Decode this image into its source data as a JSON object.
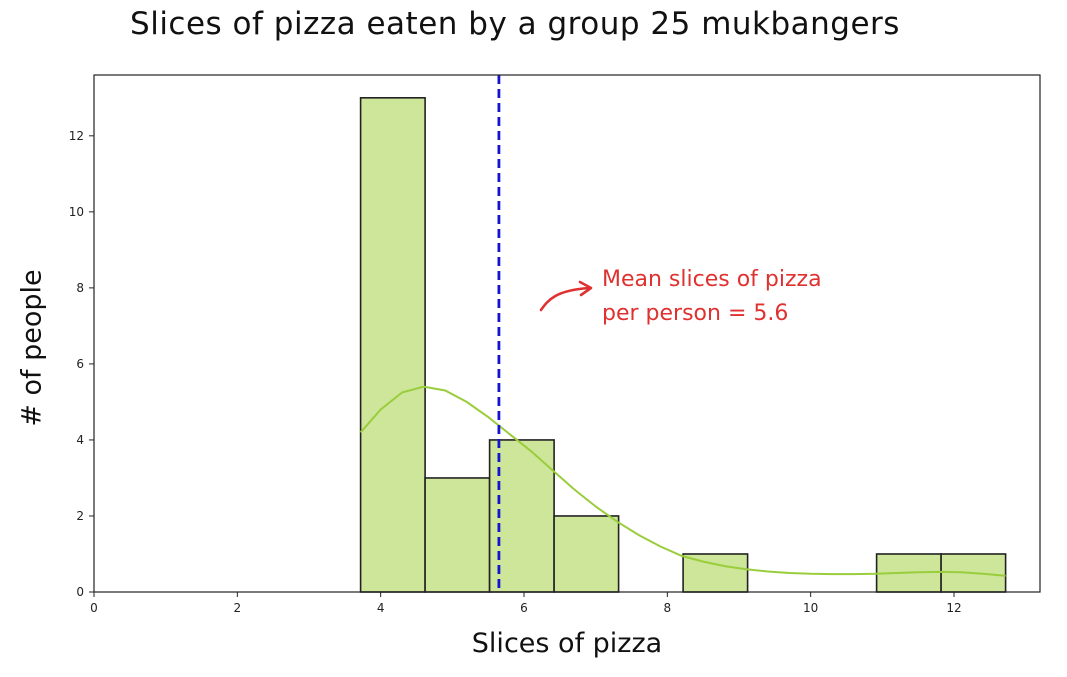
{
  "chart_data": {
    "type": "bar",
    "title": "Slices of pizza eaten by a group 25 mukbangers",
    "xlabel": "Slices of pizza",
    "ylabel": "# of people",
    "xlim": [
      0,
      13.2
    ],
    "ylim": [
      0,
      13.6
    ],
    "x_ticks": [
      0,
      2,
      4,
      6,
      8,
      10,
      12
    ],
    "y_ticks": [
      0,
      2,
      4,
      6,
      8,
      10,
      12
    ],
    "bins": [
      {
        "start": 3.72,
        "end": 4.62,
        "count": 13
      },
      {
        "start": 4.62,
        "end": 5.52,
        "count": 3
      },
      {
        "start": 5.52,
        "end": 6.42,
        "count": 4
      },
      {
        "start": 6.42,
        "end": 7.32,
        "count": 2
      },
      {
        "start": 7.32,
        "end": 8.22,
        "count": 0
      },
      {
        "start": 8.22,
        "end": 9.12,
        "count": 1
      },
      {
        "start": 9.12,
        "end": 10.02,
        "count": 0
      },
      {
        "start": 10.02,
        "end": 10.92,
        "count": 0
      },
      {
        "start": 10.92,
        "end": 11.82,
        "count": 1
      },
      {
        "start": 11.82,
        "end": 12.72,
        "count": 1
      }
    ],
    "bar_color": "#cde69a",
    "bar_edge_color": "#222222",
    "kde_color": "#9acd3c",
    "kde": {
      "x": [
        3.72,
        4.0,
        4.3,
        4.6,
        4.9,
        5.2,
        5.5,
        5.8,
        6.1,
        6.4,
        6.7,
        7.0,
        7.3,
        7.6,
        7.9,
        8.2,
        8.5,
        8.8,
        9.1,
        9.4,
        9.7,
        10.0,
        10.3,
        10.6,
        10.9,
        11.2,
        11.5,
        11.8,
        12.1,
        12.4,
        12.72
      ],
      "y": [
        4.2,
        4.8,
        5.25,
        5.4,
        5.3,
        5.0,
        4.6,
        4.15,
        3.7,
        3.2,
        2.7,
        2.25,
        1.85,
        1.5,
        1.2,
        0.95,
        0.8,
        0.68,
        0.6,
        0.54,
        0.5,
        0.48,
        0.47,
        0.47,
        0.48,
        0.5,
        0.52,
        0.53,
        0.52,
        0.48,
        0.43
      ]
    },
    "mean_line": {
      "value": 5.65,
      "color": "#1414d2"
    },
    "annotation": {
      "line1": "Mean slices of pizza",
      "line2": "per person = 5.6",
      "color": "#e03131"
    },
    "grid": false,
    "legend": "none"
  }
}
